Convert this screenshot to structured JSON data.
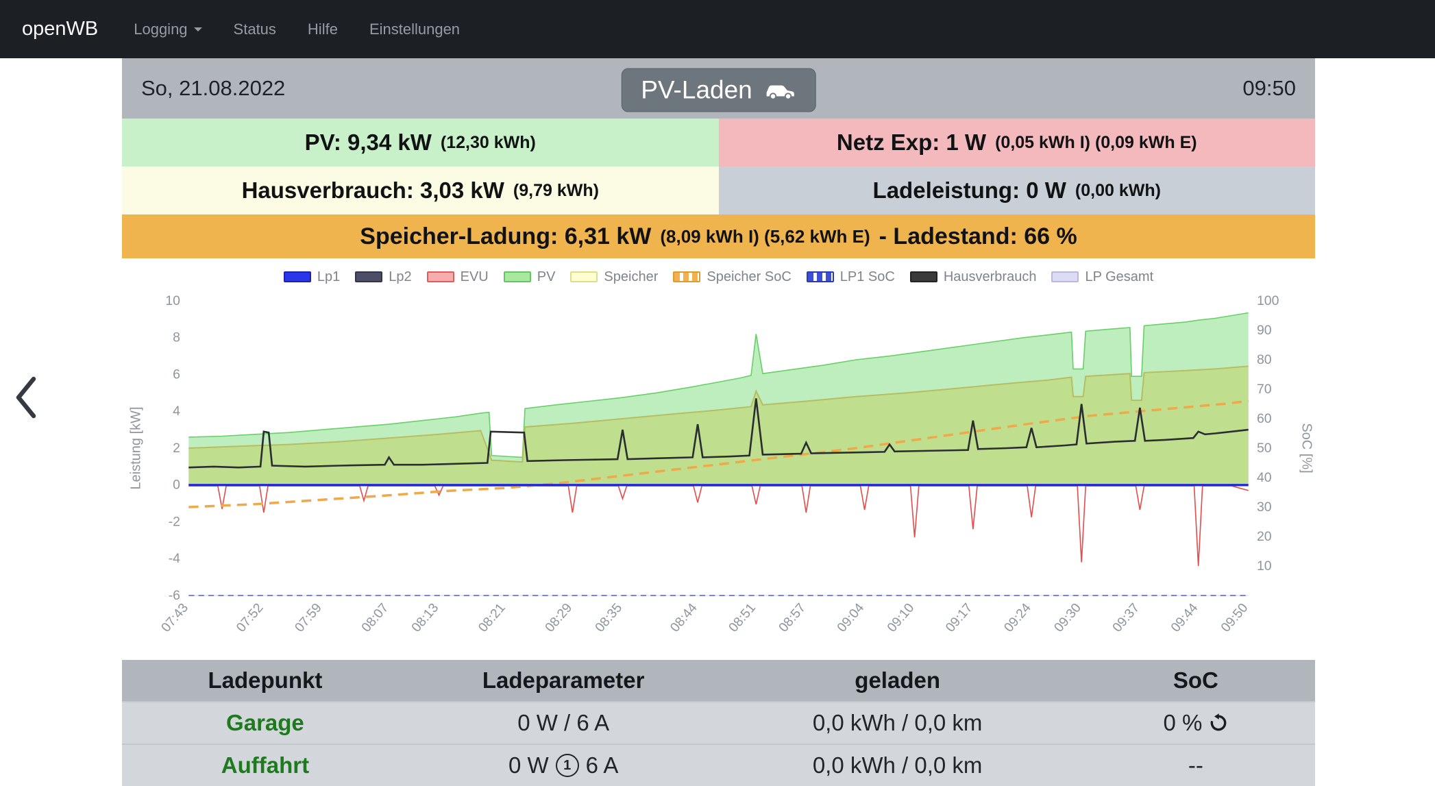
{
  "navbar": {
    "brand": "openWB",
    "items": [
      {
        "id": "logging",
        "label": "Logging",
        "caret": true
      },
      {
        "id": "status",
        "label": "Status",
        "caret": false
      },
      {
        "id": "hilfe",
        "label": "Hilfe",
        "caret": false
      },
      {
        "id": "einstellungen",
        "label": "Einstellungen",
        "caret": false
      }
    ]
  },
  "header": {
    "date": "So, 21.08.2022",
    "time": "09:50",
    "mode_button": {
      "label": "PV-Laden",
      "icon": "car-icon"
    }
  },
  "tiles": {
    "pv": {
      "main": "PV: 9,34 kW",
      "detail": "(12,30 kWh)",
      "bg": "#c9f1c9"
    },
    "netz": {
      "main": "Netz Exp: 1 W",
      "detail": "(0,05 kWh I) (0,09 kWh E)",
      "bg": "#f4b9bd"
    },
    "haus": {
      "main": "Hausverbrauch: 3,03 kW",
      "detail": "(9,79 kWh)",
      "bg": "#fcfbe3"
    },
    "lade": {
      "main": "Ladeleistung: 0 W",
      "detail": "(0,00 kWh)",
      "bg": "#c9cfd7"
    },
    "speicher": {
      "main": "Speicher-Ladung: 6,31 kW",
      "detail": "(8,09 kWh I) (5,62 kWh E)",
      "suffix": "- Ladestand: 66 %",
      "bg": "#f0b44e"
    }
  },
  "chart_data": {
    "type": "area",
    "x_axis": {
      "range": [
        0,
        127
      ],
      "tick_minutes": [
        0,
        9,
        16,
        24,
        30,
        38,
        46,
        52,
        61,
        68,
        74,
        81,
        87,
        94,
        101,
        107,
        114,
        121,
        127
      ],
      "tick_labels": [
        "07:43",
        "07:52",
        "07:59",
        "08:07",
        "08:13",
        "08:21",
        "08:29",
        "08:35",
        "08:44",
        "08:51",
        "08:57",
        "09:04",
        "09:10",
        "09:17",
        "09:24",
        "09:30",
        "09:37",
        "09:44",
        "09:50"
      ]
    },
    "y_left": {
      "label": "Leistung [kW]",
      "range": [
        -6,
        10
      ],
      "ticks": [
        10,
        8,
        6,
        4,
        2,
        0,
        -2,
        -4,
        -6
      ]
    },
    "y_right": {
      "label": "SoC [%]",
      "range": [
        0,
        100
      ],
      "ticks": [
        100,
        90,
        80,
        70,
        60,
        50,
        40,
        30,
        20,
        10
      ]
    },
    "legend": [
      {
        "label": "Lp1",
        "fill": "#2a36e8",
        "border": "#1b23a8",
        "striped": false
      },
      {
        "label": "Lp2",
        "fill": "#4d4d66",
        "border": "#33334d",
        "striped": false
      },
      {
        "label": "EVU",
        "fill": "#f5adad",
        "border": "#e05c5c",
        "striped": false
      },
      {
        "label": "PV",
        "fill": "#a9e8a0",
        "border": "#63c663",
        "striped": false
      },
      {
        "label": "Speicher",
        "fill": "#ffffcf",
        "border": "#dede8a",
        "striped": false
      },
      {
        "label": "Speicher SoC",
        "fill": "#f3b04f",
        "border": "#e09b2d",
        "striped": true
      },
      {
        "label": "LP1 SoC",
        "fill": "#3d4fd4",
        "border": "#2a3ab0",
        "striped": true
      },
      {
        "label": "Hausverbrauch",
        "fill": "#3a3a3a",
        "border": "#222222",
        "striped": false
      },
      {
        "label": "LP Gesamt",
        "fill": "#dcdcf5",
        "border": "#b8b8e0",
        "striped": false
      }
    ],
    "series": [
      {
        "name": "PV",
        "kind": "area",
        "axis": "kw",
        "fill": "rgba(126,222,126,0.5)",
        "line": "#69cf69",
        "width": 1.6,
        "points": [
          [
            0,
            2.6
          ],
          [
            4,
            2.65
          ],
          [
            8,
            2.75
          ],
          [
            12,
            2.85
          ],
          [
            16,
            3.0
          ],
          [
            20,
            3.15
          ],
          [
            24,
            3.3
          ],
          [
            28,
            3.5
          ],
          [
            32,
            3.7
          ],
          [
            35,
            3.9
          ],
          [
            36,
            3.95
          ],
          [
            36.3,
            1.6
          ],
          [
            40,
            1.5
          ],
          [
            40.3,
            4.15
          ],
          [
            44,
            4.35
          ],
          [
            48,
            4.55
          ],
          [
            52,
            4.75
          ],
          [
            56,
            5.0
          ],
          [
            60,
            5.3
          ],
          [
            63,
            5.55
          ],
          [
            66,
            5.8
          ],
          [
            67.4,
            5.95
          ],
          [
            68,
            8.2
          ],
          [
            68.8,
            6.05
          ],
          [
            72,
            6.25
          ],
          [
            76,
            6.5
          ],
          [
            80,
            6.8
          ],
          [
            84,
            7.0
          ],
          [
            88,
            7.25
          ],
          [
            92,
            7.5
          ],
          [
            96,
            7.75
          ],
          [
            100,
            8.0
          ],
          [
            103,
            8.15
          ],
          [
            105.8,
            8.3
          ],
          [
            106,
            6.3
          ],
          [
            107.2,
            6.3
          ],
          [
            107.5,
            8.35
          ],
          [
            110,
            8.45
          ],
          [
            112.8,
            8.55
          ],
          [
            113,
            5.9
          ],
          [
            114.2,
            5.9
          ],
          [
            114.5,
            8.65
          ],
          [
            117,
            8.75
          ],
          [
            119.5,
            8.85
          ],
          [
            121,
            8.95
          ],
          [
            123,
            9.05
          ],
          [
            125,
            9.2
          ],
          [
            127,
            9.35
          ]
        ]
      },
      {
        "name": "Speicher",
        "kind": "area",
        "axis": "kw",
        "fill": "rgba(196,205,85,0.45)",
        "line": "#b6bd62",
        "width": 2,
        "points": [
          [
            0,
            2.0
          ],
          [
            6,
            2.1
          ],
          [
            12,
            2.2
          ],
          [
            18,
            2.35
          ],
          [
            24,
            2.55
          ],
          [
            30,
            2.75
          ],
          [
            35,
            2.95
          ],
          [
            36.3,
            1.35
          ],
          [
            40,
            1.25
          ],
          [
            40.3,
            3.15
          ],
          [
            46,
            3.35
          ],
          [
            52,
            3.6
          ],
          [
            58,
            3.85
          ],
          [
            63,
            4.05
          ],
          [
            67.4,
            4.25
          ],
          [
            68,
            5.1
          ],
          [
            68.8,
            4.35
          ],
          [
            74,
            4.55
          ],
          [
            80,
            4.8
          ],
          [
            86,
            5.0
          ],
          [
            92,
            5.25
          ],
          [
            98,
            5.5
          ],
          [
            103,
            5.7
          ],
          [
            105.8,
            5.85
          ],
          [
            106,
            4.8
          ],
          [
            107.2,
            4.8
          ],
          [
            107.5,
            5.9
          ],
          [
            112.8,
            6.05
          ],
          [
            113,
            4.6
          ],
          [
            114.2,
            4.6
          ],
          [
            114.5,
            6.1
          ],
          [
            119,
            6.2
          ],
          [
            123,
            6.3
          ],
          [
            127,
            6.45
          ]
        ]
      },
      {
        "name": "LP1 SoC",
        "kind": "line",
        "axis": "pct",
        "color": "#4a5ad0",
        "width": 1.6,
        "dash": "8 6",
        "points": [
          [
            0,
            0
          ],
          [
            127,
            0
          ]
        ]
      },
      {
        "name": "EVU",
        "kind": "line",
        "axis": "kw",
        "color": "#e14f4f",
        "width": 1.6,
        "dash": "",
        "points": [
          [
            0,
            -0.05
          ],
          [
            3.5,
            -0.05
          ],
          [
            4,
            -1.3
          ],
          [
            4.5,
            -0.05
          ],
          [
            8.5,
            -0.05
          ],
          [
            9,
            -1.5
          ],
          [
            9.5,
            -0.05
          ],
          [
            20.5,
            -0.05
          ],
          [
            21,
            -0.85
          ],
          [
            21.5,
            -0.05
          ],
          [
            29.5,
            -0.05
          ],
          [
            30,
            -0.55
          ],
          [
            30.5,
            -0.05
          ],
          [
            45.5,
            -0.05
          ],
          [
            46,
            -1.5
          ],
          [
            46.5,
            -0.05
          ],
          [
            51.5,
            -0.05
          ],
          [
            52,
            -0.75
          ],
          [
            52.5,
            -0.05
          ],
          [
            60.5,
            -0.05
          ],
          [
            61,
            -0.95
          ],
          [
            61.5,
            -0.05
          ],
          [
            67.5,
            -0.05
          ],
          [
            68,
            -1.05
          ],
          [
            68.5,
            -0.05
          ],
          [
            73.5,
            -0.05
          ],
          [
            74,
            -1.5
          ],
          [
            74.5,
            -0.05
          ],
          [
            80.5,
            -0.05
          ],
          [
            81,
            -1.35
          ],
          [
            81.5,
            -0.05
          ],
          [
            86.5,
            -0.05
          ],
          [
            87,
            -2.85
          ],
          [
            87.5,
            -0.05
          ],
          [
            93.5,
            -0.05
          ],
          [
            94,
            -2.4
          ],
          [
            94.5,
            -0.05
          ],
          [
            100.5,
            -0.05
          ],
          [
            101,
            -1.75
          ],
          [
            101.5,
            -0.05
          ],
          [
            106.5,
            -0.05
          ],
          [
            107,
            -4.2
          ],
          [
            107.5,
            -0.05
          ],
          [
            113.5,
            -0.05
          ],
          [
            114,
            -1.35
          ],
          [
            114.5,
            -0.05
          ],
          [
            120.5,
            -0.05
          ],
          [
            121,
            -4.4
          ],
          [
            121.5,
            -0.05
          ],
          [
            125,
            -0.05
          ],
          [
            127,
            -0.3
          ]
        ]
      },
      {
        "name": "Speicher SoC",
        "kind": "line",
        "axis": "pct",
        "color": "#efa94a",
        "width": 3.5,
        "dash": "14 9",
        "points": [
          [
            0,
            30
          ],
          [
            8,
            31
          ],
          [
            16,
            32.5
          ],
          [
            24,
            34
          ],
          [
            31,
            35.5
          ],
          [
            38,
            36.5
          ],
          [
            44,
            38
          ],
          [
            50,
            40
          ],
          [
            56,
            42
          ],
          [
            62,
            44
          ],
          [
            68,
            46
          ],
          [
            74,
            48
          ],
          [
            80,
            50
          ],
          [
            85,
            52
          ],
          [
            90,
            54
          ],
          [
            95,
            56
          ],
          [
            100,
            58
          ],
          [
            104,
            59.5
          ],
          [
            108,
            61
          ],
          [
            112,
            62
          ],
          [
            116,
            63
          ],
          [
            120,
            64
          ],
          [
            124,
            65
          ],
          [
            127,
            66
          ]
        ]
      },
      {
        "name": "Hausverbrauch",
        "kind": "line",
        "axis": "kw",
        "color": "#2b2e31",
        "width": 2.6,
        "dash": "",
        "points": [
          [
            0,
            0.95
          ],
          [
            3,
            1.0
          ],
          [
            6,
            0.95
          ],
          [
            8.6,
            1.0
          ],
          [
            9,
            2.9
          ],
          [
            9.6,
            2.85
          ],
          [
            10,
            1.05
          ],
          [
            14,
            1.0
          ],
          [
            18,
            1.05
          ],
          [
            23.5,
            1.1
          ],
          [
            24,
            1.5
          ],
          [
            24.6,
            1.1
          ],
          [
            28,
            1.1
          ],
          [
            32,
            1.15
          ],
          [
            35.8,
            1.2
          ],
          [
            36.2,
            2.9
          ],
          [
            40.2,
            2.85
          ],
          [
            40.6,
            1.3
          ],
          [
            45,
            1.35
          ],
          [
            51.4,
            1.4
          ],
          [
            52,
            3.0
          ],
          [
            52.6,
            1.4
          ],
          [
            56,
            1.45
          ],
          [
            60.4,
            1.5
          ],
          [
            61,
            3.3
          ],
          [
            61.6,
            1.5
          ],
          [
            65,
            1.55
          ],
          [
            67.2,
            1.6
          ],
          [
            68,
            4.7
          ],
          [
            68.8,
            1.65
          ],
          [
            73.4,
            1.7
          ],
          [
            74,
            2.3
          ],
          [
            74.6,
            1.72
          ],
          [
            78,
            1.75
          ],
          [
            83.4,
            1.8
          ],
          [
            84,
            2.2
          ],
          [
            84.6,
            1.82
          ],
          [
            88,
            1.85
          ],
          [
            93.4,
            1.9
          ],
          [
            94,
            3.5
          ],
          [
            94.6,
            1.95
          ],
          [
            98,
            2.0
          ],
          [
            100.4,
            2.05
          ],
          [
            101,
            3.1
          ],
          [
            101.6,
            2.05
          ],
          [
            105,
            2.15
          ],
          [
            106.4,
            2.2
          ],
          [
            107,
            4.4
          ],
          [
            107.6,
            2.25
          ],
          [
            111,
            2.35
          ],
          [
            113.4,
            2.4
          ],
          [
            114,
            4.2
          ],
          [
            114.6,
            2.4
          ],
          [
            117,
            2.45
          ],
          [
            120.4,
            2.55
          ],
          [
            121,
            2.9
          ],
          [
            121.8,
            2.75
          ],
          [
            123,
            2.8
          ],
          [
            125,
            2.9
          ],
          [
            127,
            3.0
          ]
        ]
      },
      {
        "name": "Lp1",
        "kind": "line",
        "axis": "kw",
        "color": "#2228d8",
        "width": 3.4,
        "dash": "",
        "points": [
          [
            0,
            0
          ],
          [
            127,
            0
          ]
        ]
      }
    ]
  },
  "table": {
    "headers": [
      "Ladepunkt",
      "Ladeparameter",
      "geladen",
      "SoC"
    ],
    "name_color": "#1d7a1d",
    "rows": [
      {
        "name": "Garage",
        "params": "0 W / 6 A",
        "charged": "0,0 kWh / 0,0 km",
        "soc": "0 %",
        "soc_icon": "refresh"
      },
      {
        "name": "Auffahrt",
        "params_pre": "0 W",
        "params_icon": "1",
        "params_post": "6 A",
        "charged": "0,0 kWh / 0,0 km",
        "soc": "--"
      }
    ]
  }
}
